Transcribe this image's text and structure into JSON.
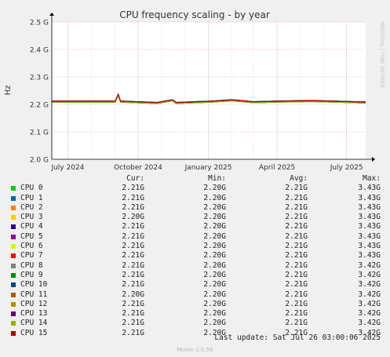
{
  "chart_data": {
    "type": "line",
    "title": "CPU frequency scaling - by year",
    "ylabel": "Hz",
    "watermark": "RRDTOOL / TOBI OETIKER",
    "ylim": [
      2.0,
      2.5
    ],
    "y_ticks": [
      "2.0 G",
      "2.1 G",
      "2.2 G",
      "2.3 G",
      "2.4 G",
      "2.5 G"
    ],
    "y_tick_values": [
      2.0,
      2.1,
      2.2,
      2.3,
      2.4,
      2.5
    ],
    "x_ticks": [
      "July 2024",
      "October 2024",
      "January 2025",
      "April 2025",
      "July 2025"
    ],
    "x_range": [
      "2024-06-10",
      "2025-07-26"
    ],
    "x_tick_dates": [
      "2024-07-01",
      "2024-10-01",
      "2025-01-01",
      "2025-04-01",
      "2025-07-01"
    ],
    "grid": true,
    "series": [
      {
        "name": "CPU 0",
        "color": "#00cc00"
      },
      {
        "name": "CPU 1",
        "color": "#0066b3"
      },
      {
        "name": "CPU 2",
        "color": "#ff8000"
      },
      {
        "name": "CPU 3",
        "color": "#ffcc00"
      },
      {
        "name": "CPU 4",
        "color": "#330099"
      },
      {
        "name": "CPU 5",
        "color": "#990099"
      },
      {
        "name": "CPU 6",
        "color": "#ccff00"
      },
      {
        "name": "CPU 7",
        "color": "#ff0000"
      },
      {
        "name": "CPU 8",
        "color": "#808080"
      },
      {
        "name": "CPU 9",
        "color": "#008f00"
      },
      {
        "name": "CPU 10",
        "color": "#00487d"
      },
      {
        "name": "CPU 11",
        "color": "#b35a00"
      },
      {
        "name": "CPU 12",
        "color": "#b38f00"
      },
      {
        "name": "CPU 13",
        "color": "#6b006b"
      },
      {
        "name": "CPU 14",
        "color": "#8fb300"
      },
      {
        "name": "CPU 15",
        "color": "#b30000"
      }
    ],
    "trend_points": [
      [
        "2024-06-10",
        2.21
      ],
      [
        "2024-09-01",
        2.21
      ],
      [
        "2024-09-05",
        2.235
      ],
      [
        "2024-09-08",
        2.21
      ],
      [
        "2024-10-26",
        2.205
      ],
      [
        "2024-11-15",
        2.215
      ],
      [
        "2024-11-20",
        2.205
      ],
      [
        "2025-01-05",
        2.21
      ],
      [
        "2025-02-01",
        2.215
      ],
      [
        "2025-03-01",
        2.208
      ],
      [
        "2025-04-01",
        2.21
      ],
      [
        "2025-05-15",
        2.212
      ],
      [
        "2025-06-15",
        2.21
      ],
      [
        "2025-07-26",
        2.207
      ]
    ]
  },
  "legend": {
    "headers": {
      "cur": "Cur:",
      "min": "Min:",
      "avg": "Avg:",
      "max": "Max:"
    },
    "rows": [
      {
        "name": "CPU 0",
        "cur": "2.21G",
        "min": "2.20G",
        "avg": "2.21G",
        "max": "3.43G"
      },
      {
        "name": "CPU 1",
        "cur": "2.21G",
        "min": "2.20G",
        "avg": "2.21G",
        "max": "3.43G"
      },
      {
        "name": "CPU 2",
        "cur": "2.21G",
        "min": "2.20G",
        "avg": "2.21G",
        "max": "3.43G"
      },
      {
        "name": "CPU 3",
        "cur": "2.20G",
        "min": "2.20G",
        "avg": "2.21G",
        "max": "3.43G"
      },
      {
        "name": "CPU 4",
        "cur": "2.21G",
        "min": "2.20G",
        "avg": "2.21G",
        "max": "3.43G"
      },
      {
        "name": "CPU 5",
        "cur": "2.21G",
        "min": "2.20G",
        "avg": "2.21G",
        "max": "3.43G"
      },
      {
        "name": "CPU 6",
        "cur": "2.21G",
        "min": "2.20G",
        "avg": "2.21G",
        "max": "3.43G"
      },
      {
        "name": "CPU 7",
        "cur": "2.21G",
        "min": "2.20G",
        "avg": "2.21G",
        "max": "3.43G"
      },
      {
        "name": "CPU 8",
        "cur": "2.21G",
        "min": "2.20G",
        "avg": "2.21G",
        "max": "3.42G"
      },
      {
        "name": "CPU 9",
        "cur": "2.21G",
        "min": "2.20G",
        "avg": "2.21G",
        "max": "3.42G"
      },
      {
        "name": "CPU 10",
        "cur": "2.21G",
        "min": "2.20G",
        "avg": "2.21G",
        "max": "3.42G"
      },
      {
        "name": "CPU 11",
        "cur": "2.20G",
        "min": "2.20G",
        "avg": "2.21G",
        "max": "3.42G"
      },
      {
        "name": "CPU 12",
        "cur": "2.21G",
        "min": "2.20G",
        "avg": "2.21G",
        "max": "3.42G"
      },
      {
        "name": "CPU 13",
        "cur": "2.21G",
        "min": "2.20G",
        "avg": "2.21G",
        "max": "3.42G"
      },
      {
        "name": "CPU 14",
        "cur": "2.21G",
        "min": "2.20G",
        "avg": "2.21G",
        "max": "3.42G"
      },
      {
        "name": "CPU 15",
        "cur": "2.21G",
        "min": "2.20G",
        "avg": "2.21G",
        "max": "3.42G"
      }
    ]
  },
  "last_update": "Last update: Sat Jul 26 03:00:06 2025",
  "footer": "Munin 2.0.56"
}
